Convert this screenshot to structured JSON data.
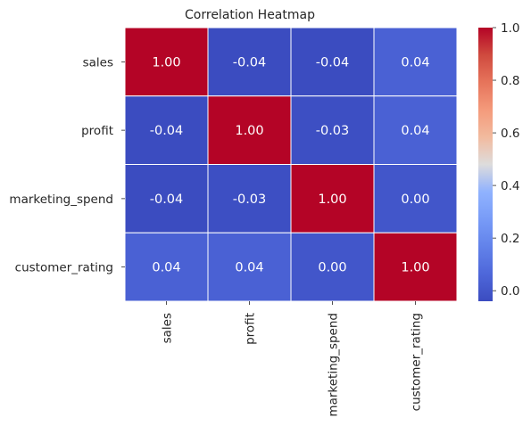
{
  "chart_data": {
    "type": "heatmap",
    "title": "Correlation Heatmap",
    "xlabel": "",
    "ylabel": "",
    "rows": [
      "sales",
      "profit",
      "marketing_spend",
      "customer_rating"
    ],
    "columns": [
      "sales",
      "profit",
      "marketing_spend",
      "customer_rating"
    ],
    "values": [
      [
        1.0,
        -0.04,
        -0.04,
        0.04
      ],
      [
        -0.04,
        1.0,
        -0.03,
        0.04
      ],
      [
        -0.04,
        -0.03,
        1.0,
        0.0
      ],
      [
        0.04,
        0.04,
        0.0,
        1.0
      ]
    ],
    "cell_labels": [
      [
        "1.00",
        "-0.04",
        "-0.04",
        "0.04"
      ],
      [
        "-0.04",
        "1.00",
        "-0.03",
        "0.04"
      ],
      [
        "-0.04",
        "-0.03",
        "1.00",
        "0.00"
      ],
      [
        "0.04",
        "0.04",
        "0.00",
        "1.00"
      ]
    ],
    "colormap": "coolwarm",
    "color_range": [
      -0.04,
      1.0
    ],
    "colorbar_ticks": [
      0.0,
      0.2,
      0.4,
      0.6,
      0.8,
      1.0
    ],
    "colorbar_tick_labels": [
      "0.0",
      "0.2",
      "0.4",
      "0.6",
      "0.8",
      "1.0"
    ],
    "colorbar_placement": "right",
    "x_tick_rotation": "vertical",
    "gridlines": "white cell borders"
  }
}
